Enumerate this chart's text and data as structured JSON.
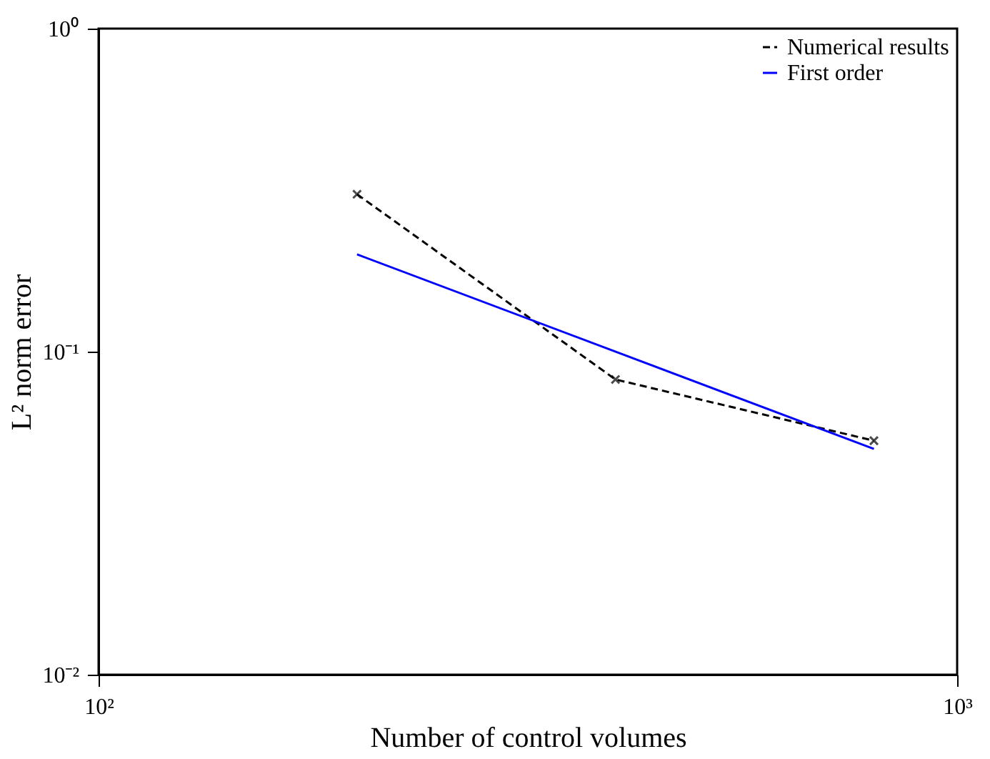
{
  "chart_data": {
    "type": "line",
    "xlabel": "Number of control volumes",
    "ylabel": "L² norm error",
    "log": "xy",
    "grid": false,
    "legend": "top right",
    "xlim": [
      100,
      1000
    ],
    "xticks": [
      {
        "value": 100,
        "label": "10²"
      },
      {
        "value": 1000,
        "label": "10³"
      }
    ],
    "ylim": [
      0.01,
      1
    ],
    "yticks": [
      {
        "value": 0.01,
        "label": "10⁻²"
      },
      {
        "value": 0.1,
        "label": "10⁻¹"
      },
      {
        "value": 1,
        "label": "10⁰"
      }
    ],
    "series": [
      {
        "name": "Numerical results",
        "color": "#000000",
        "line_style": "dashed",
        "marker": "cross",
        "x": [
          200,
          400,
          800
        ],
        "values": [
          0.307,
          0.082,
          0.053
        ]
      },
      {
        "name": "First order",
        "color": "#0000ff",
        "line_style": "solid",
        "marker": "none",
        "x": [
          200,
          800
        ],
        "values": [
          0.2,
          0.05
        ]
      }
    ]
  }
}
